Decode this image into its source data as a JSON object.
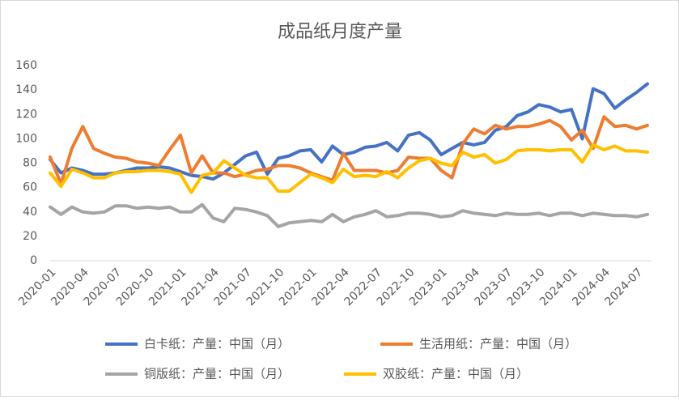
{
  "chart_data": {
    "type": "line",
    "title": "成品纸月度产量",
    "categories": [
      "2020-01",
      null,
      null,
      "2020-04",
      null,
      null,
      "2020-07",
      null,
      null,
      "2020-10",
      null,
      null,
      "2021-01",
      null,
      null,
      "2021-04",
      null,
      null,
      "2021-07",
      null,
      null,
      "2021-10",
      null,
      null,
      "2022-01",
      null,
      null,
      "2022-04",
      null,
      null,
      "2022-07",
      null,
      null,
      "2022-10",
      null,
      null,
      "2023-01",
      null,
      null,
      "2023-04",
      null,
      null,
      "2023-07",
      null,
      null,
      "2023-10",
      null,
      null,
      "2024-01",
      null,
      null,
      "2024-04",
      null,
      null,
      "2024-07",
      null
    ],
    "series": [
      {
        "name": "白卡纸：产量：中国（月）",
        "color": "#4472c4",
        "values": [
          83,
          72,
          76,
          74,
          71,
          71,
          72,
          74,
          76,
          76,
          77,
          76,
          73,
          70,
          69,
          67,
          72,
          79,
          86,
          89,
          71,
          84,
          86,
          90,
          91,
          81,
          94,
          87,
          89,
          93,
          94,
          97,
          90,
          103,
          105,
          99,
          87,
          92,
          97,
          95,
          97,
          107,
          110,
          119,
          122,
          128,
          126,
          122,
          124,
          100,
          141,
          137,
          125,
          132,
          138,
          145
        ]
      },
      {
        "name": "生活用纸：产量：中国（月）",
        "color": "#ed7d31",
        "values": [
          85,
          63,
          92,
          110,
          92,
          88,
          85,
          84,
          81,
          80,
          78,
          91,
          103,
          72,
          86,
          72,
          72,
          69,
          71,
          74,
          75,
          78,
          78,
          76,
          72,
          69,
          66,
          88,
          74,
          74,
          74,
          72,
          74,
          85,
          84,
          84,
          74,
          68,
          96,
          108,
          104,
          111,
          108,
          110,
          110,
          112,
          115,
          110,
          99,
          107,
          92,
          118,
          110,
          111,
          108,
          111
        ]
      },
      {
        "name": "铜版纸：产量：中国（月）",
        "color": "#a5a5a5",
        "values": [
          44,
          38,
          44,
          40,
          39,
          40,
          45,
          45,
          43,
          44,
          43,
          44,
          40,
          40,
          46,
          35,
          32,
          43,
          42,
          40,
          37,
          28,
          31,
          32,
          33,
          32,
          38,
          32,
          36,
          38,
          41,
          36,
          37,
          39,
          39,
          38,
          36,
          37,
          41,
          39,
          38,
          37,
          39,
          38,
          38,
          39,
          37,
          39,
          39,
          37,
          39,
          38,
          37,
          37,
          36,
          38
        ]
      },
      {
        "name": "双胶纸：产量：中国（月）",
        "color": "#ffc000",
        "values": [
          72,
          61,
          75,
          72,
          68,
          68,
          72,
          73,
          73,
          74,
          74,
          73,
          71,
          56,
          70,
          72,
          82,
          76,
          70,
          68,
          68,
          57,
          57,
          64,
          71,
          68,
          64,
          75,
          69,
          70,
          69,
          73,
          68,
          76,
          82,
          84,
          80,
          78,
          89,
          85,
          87,
          80,
          83,
          90,
          91,
          91,
          90,
          91,
          91,
          81,
          95,
          91,
          94,
          90,
          90,
          89
        ]
      }
    ],
    "ylim": [
      0,
      160
    ],
    "yticks": [
      0,
      20,
      40,
      60,
      80,
      100,
      120,
      140,
      160
    ],
    "grid": false
  }
}
